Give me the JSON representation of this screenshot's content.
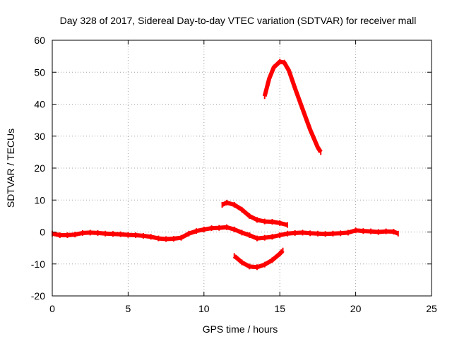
{
  "chart_data": {
    "type": "scatter",
    "title": "Day 328 of 2017, Sidereal Day-to-day VTEC variation (SDTVAR) for receiver mall",
    "xlabel": "GPS time / hours",
    "ylabel": "SDTVAR / TECUs",
    "xlim": [
      0,
      25
    ],
    "ylim": [
      -20,
      60
    ],
    "xticks": [
      0,
      5,
      10,
      15,
      20,
      25
    ],
    "yticks": [
      -20,
      -10,
      0,
      10,
      20,
      30,
      40,
      50,
      60
    ],
    "grid": true,
    "legend": "none",
    "color": "#ff0000",
    "series": [
      {
        "name": "baseline",
        "x": [
          0,
          0.5,
          1,
          1.5,
          2,
          2.5,
          3,
          3.5,
          4,
          4.5,
          5,
          5.5,
          6,
          6.5,
          7,
          7.5,
          8,
          8.5,
          9,
          9.5,
          10,
          10.5,
          11,
          11.5,
          12,
          12.5,
          13,
          13.5,
          14,
          14.5,
          15,
          15.5,
          16,
          16.5,
          17,
          17.5,
          18,
          18.5,
          19,
          19.5,
          20,
          20.5,
          21,
          21.5,
          22,
          22.5,
          22.8
        ],
        "y": [
          -0.5,
          -1,
          -1,
          -0.8,
          -0.3,
          -0.2,
          -0.3,
          -0.5,
          -0.6,
          -0.7,
          -0.9,
          -1,
          -1.2,
          -1.5,
          -2,
          -2.2,
          -2.1,
          -1.8,
          -0.5,
          0.3,
          0.8,
          1.2,
          1.3,
          1.5,
          0.8,
          -0.2,
          -1,
          -2,
          -1.8,
          -1.5,
          -1,
          -0.5,
          -0.3,
          -0.2,
          -0.4,
          -0.5,
          -0.6,
          -0.5,
          -0.4,
          -0.2,
          0.5,
          0.3,
          0.2,
          0,
          0.2,
          0.1,
          -0.5
        ]
      },
      {
        "name": "arc-low",
        "x": [
          12,
          12.5,
          13,
          13.5,
          14,
          14.5,
          15,
          15.2
        ],
        "y": [
          -7.5,
          -9.5,
          -10.8,
          -11,
          -10.2,
          -8.8,
          -6.8,
          -5.8
        ]
      },
      {
        "name": "arc-mid",
        "x": [
          11.2,
          11.5,
          12,
          12.5,
          13,
          13.5,
          14,
          14.5,
          15,
          15.5
        ],
        "y": [
          8.5,
          9.2,
          8.5,
          7,
          5,
          3.8,
          3.3,
          3.2,
          2.8,
          2.2
        ]
      },
      {
        "name": "arc-high",
        "x": [
          14,
          14.3,
          14.6,
          15,
          15.3,
          15.6,
          16,
          16.5,
          17,
          17.5,
          17.7
        ],
        "y": [
          42.5,
          48,
          51.5,
          53.3,
          53,
          50.5,
          45,
          38.5,
          32,
          26.5,
          25
        ]
      }
    ]
  }
}
